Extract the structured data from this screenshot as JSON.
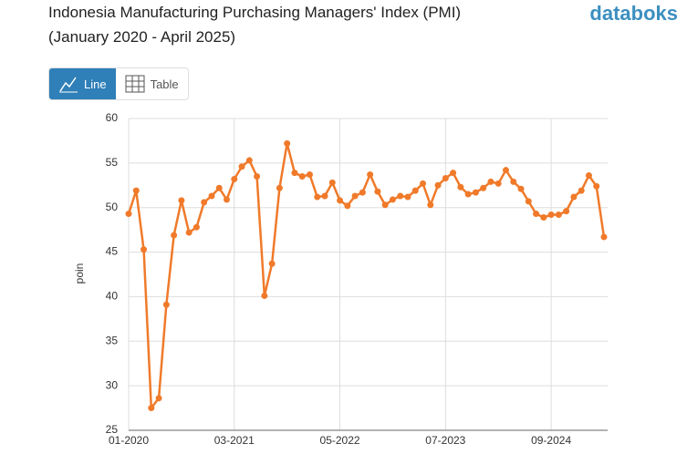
{
  "ui": {
    "brand": "databoks",
    "buttons": [
      "Line",
      "Table"
    ]
  },
  "chart_data": {
    "type": "line",
    "title": "Indonesia Manufacturing Purchasing Managers' Index (PMI)",
    "subtitle": "(January 2020 - April 2025)",
    "y_label": "poin",
    "categories": [
      "01-2020",
      null,
      null,
      null,
      null,
      null,
      null,
      null,
      null,
      null,
      null,
      null,
      null,
      null,
      "03-2021",
      null,
      null,
      null,
      null,
      null,
      null,
      null,
      null,
      null,
      null,
      null,
      null,
      null,
      "05-2022",
      null,
      null,
      null,
      null,
      null,
      null,
      null,
      null,
      null,
      null,
      null,
      null,
      null,
      "07-2023",
      null,
      null,
      null,
      null,
      null,
      null,
      null,
      null,
      null,
      null,
      null,
      null,
      null,
      "09-2024",
      null,
      null,
      null,
      null,
      null,
      null,
      null
    ],
    "series": [
      {
        "name": "PMI",
        "color": "#f07a2a",
        "values": [
          49.3,
          51.9,
          45.3,
          27.5,
          28.6,
          39.1,
          46.9,
          50.8,
          47.2,
          47.8,
          50.6,
          51.3,
          52.2,
          50.9,
          53.2,
          54.6,
          55.3,
          53.5,
          40.1,
          43.7,
          52.2,
          57.2,
          53.9,
          53.5,
          53.7,
          51.2,
          51.3,
          52.8,
          50.8,
          50.2,
          51.3,
          51.7,
          53.7,
          51.8,
          50.3,
          50.9,
          51.3,
          51.2,
          51.9,
          52.7,
          50.3,
          52.5,
          53.3,
          53.9,
          52.3,
          51.5,
          51.7,
          52.2,
          52.9,
          52.7,
          54.2,
          52.9,
          52.1,
          50.7,
          49.3,
          48.9,
          49.2,
          49.2,
          49.6,
          51.2,
          51.9,
          53.6,
          52.4,
          46.7
        ]
      }
    ],
    "ylim": [
      25,
      60
    ],
    "yticks": [
      25,
      30,
      35,
      40,
      45,
      50,
      55,
      60
    ],
    "grid": true
  }
}
